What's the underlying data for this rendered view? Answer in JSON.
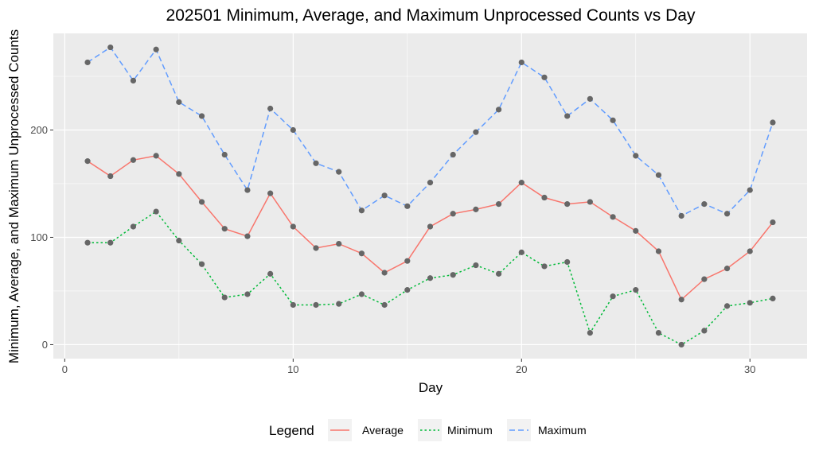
{
  "chart_data": {
    "type": "line",
    "title": "202501 Minimum, Average, and Maximum Unprocessed Counts vs Day",
    "xlabel": "Day",
    "ylabel": "Minimum, Average, and Maximum Unprocessed Counts",
    "xlim": [
      -0.5,
      32.5
    ],
    "ylim": [
      -13,
      290
    ],
    "xticks": [
      0,
      10,
      20,
      30
    ],
    "xtick_labels": [
      "0",
      "10",
      "20",
      "30"
    ],
    "yticks": [
      0,
      100,
      200
    ],
    "ytick_labels": [
      "0",
      "100",
      "200"
    ],
    "grid": true,
    "legend_position": "bottom",
    "legend_title": "Legend",
    "x": [
      1,
      2,
      3,
      4,
      5,
      6,
      7,
      8,
      9,
      10,
      11,
      12,
      13,
      14,
      15,
      16,
      17,
      18,
      19,
      20,
      21,
      22,
      23,
      24,
      25,
      26,
      27,
      28,
      29,
      30,
      31
    ],
    "series": [
      {
        "name": "Average",
        "color": "#F8766D",
        "dash": "solid",
        "values": [
          171,
          157,
          172,
          176,
          159,
          133,
          108,
          101,
          141,
          110,
          90,
          94,
          85,
          67,
          78,
          110,
          122,
          126,
          131,
          151,
          137,
          131,
          133,
          119,
          106,
          87,
          42,
          61,
          71,
          87,
          114
        ]
      },
      {
        "name": "Minimum",
        "color": "#00BA38",
        "dash": "dotted",
        "values": [
          95,
          95,
          110,
          124,
          97,
          75,
          44,
          47,
          66,
          37,
          37,
          38,
          47,
          37,
          51,
          62,
          65,
          74,
          66,
          86,
          73,
          77,
          11,
          45,
          51,
          11,
          0,
          13,
          36,
          39,
          43
        ]
      },
      {
        "name": "Maximum",
        "color": "#619CFF",
        "dash": "dashed",
        "values": [
          263,
          277,
          246,
          275,
          226,
          213,
          177,
          144,
          220,
          200,
          169,
          161,
          125,
          139,
          129,
          151,
          177,
          198,
          219,
          263,
          249,
          213,
          229,
          209,
          176,
          158,
          120,
          131,
          122,
          144,
          207
        ]
      }
    ],
    "point_color": "#666666"
  }
}
